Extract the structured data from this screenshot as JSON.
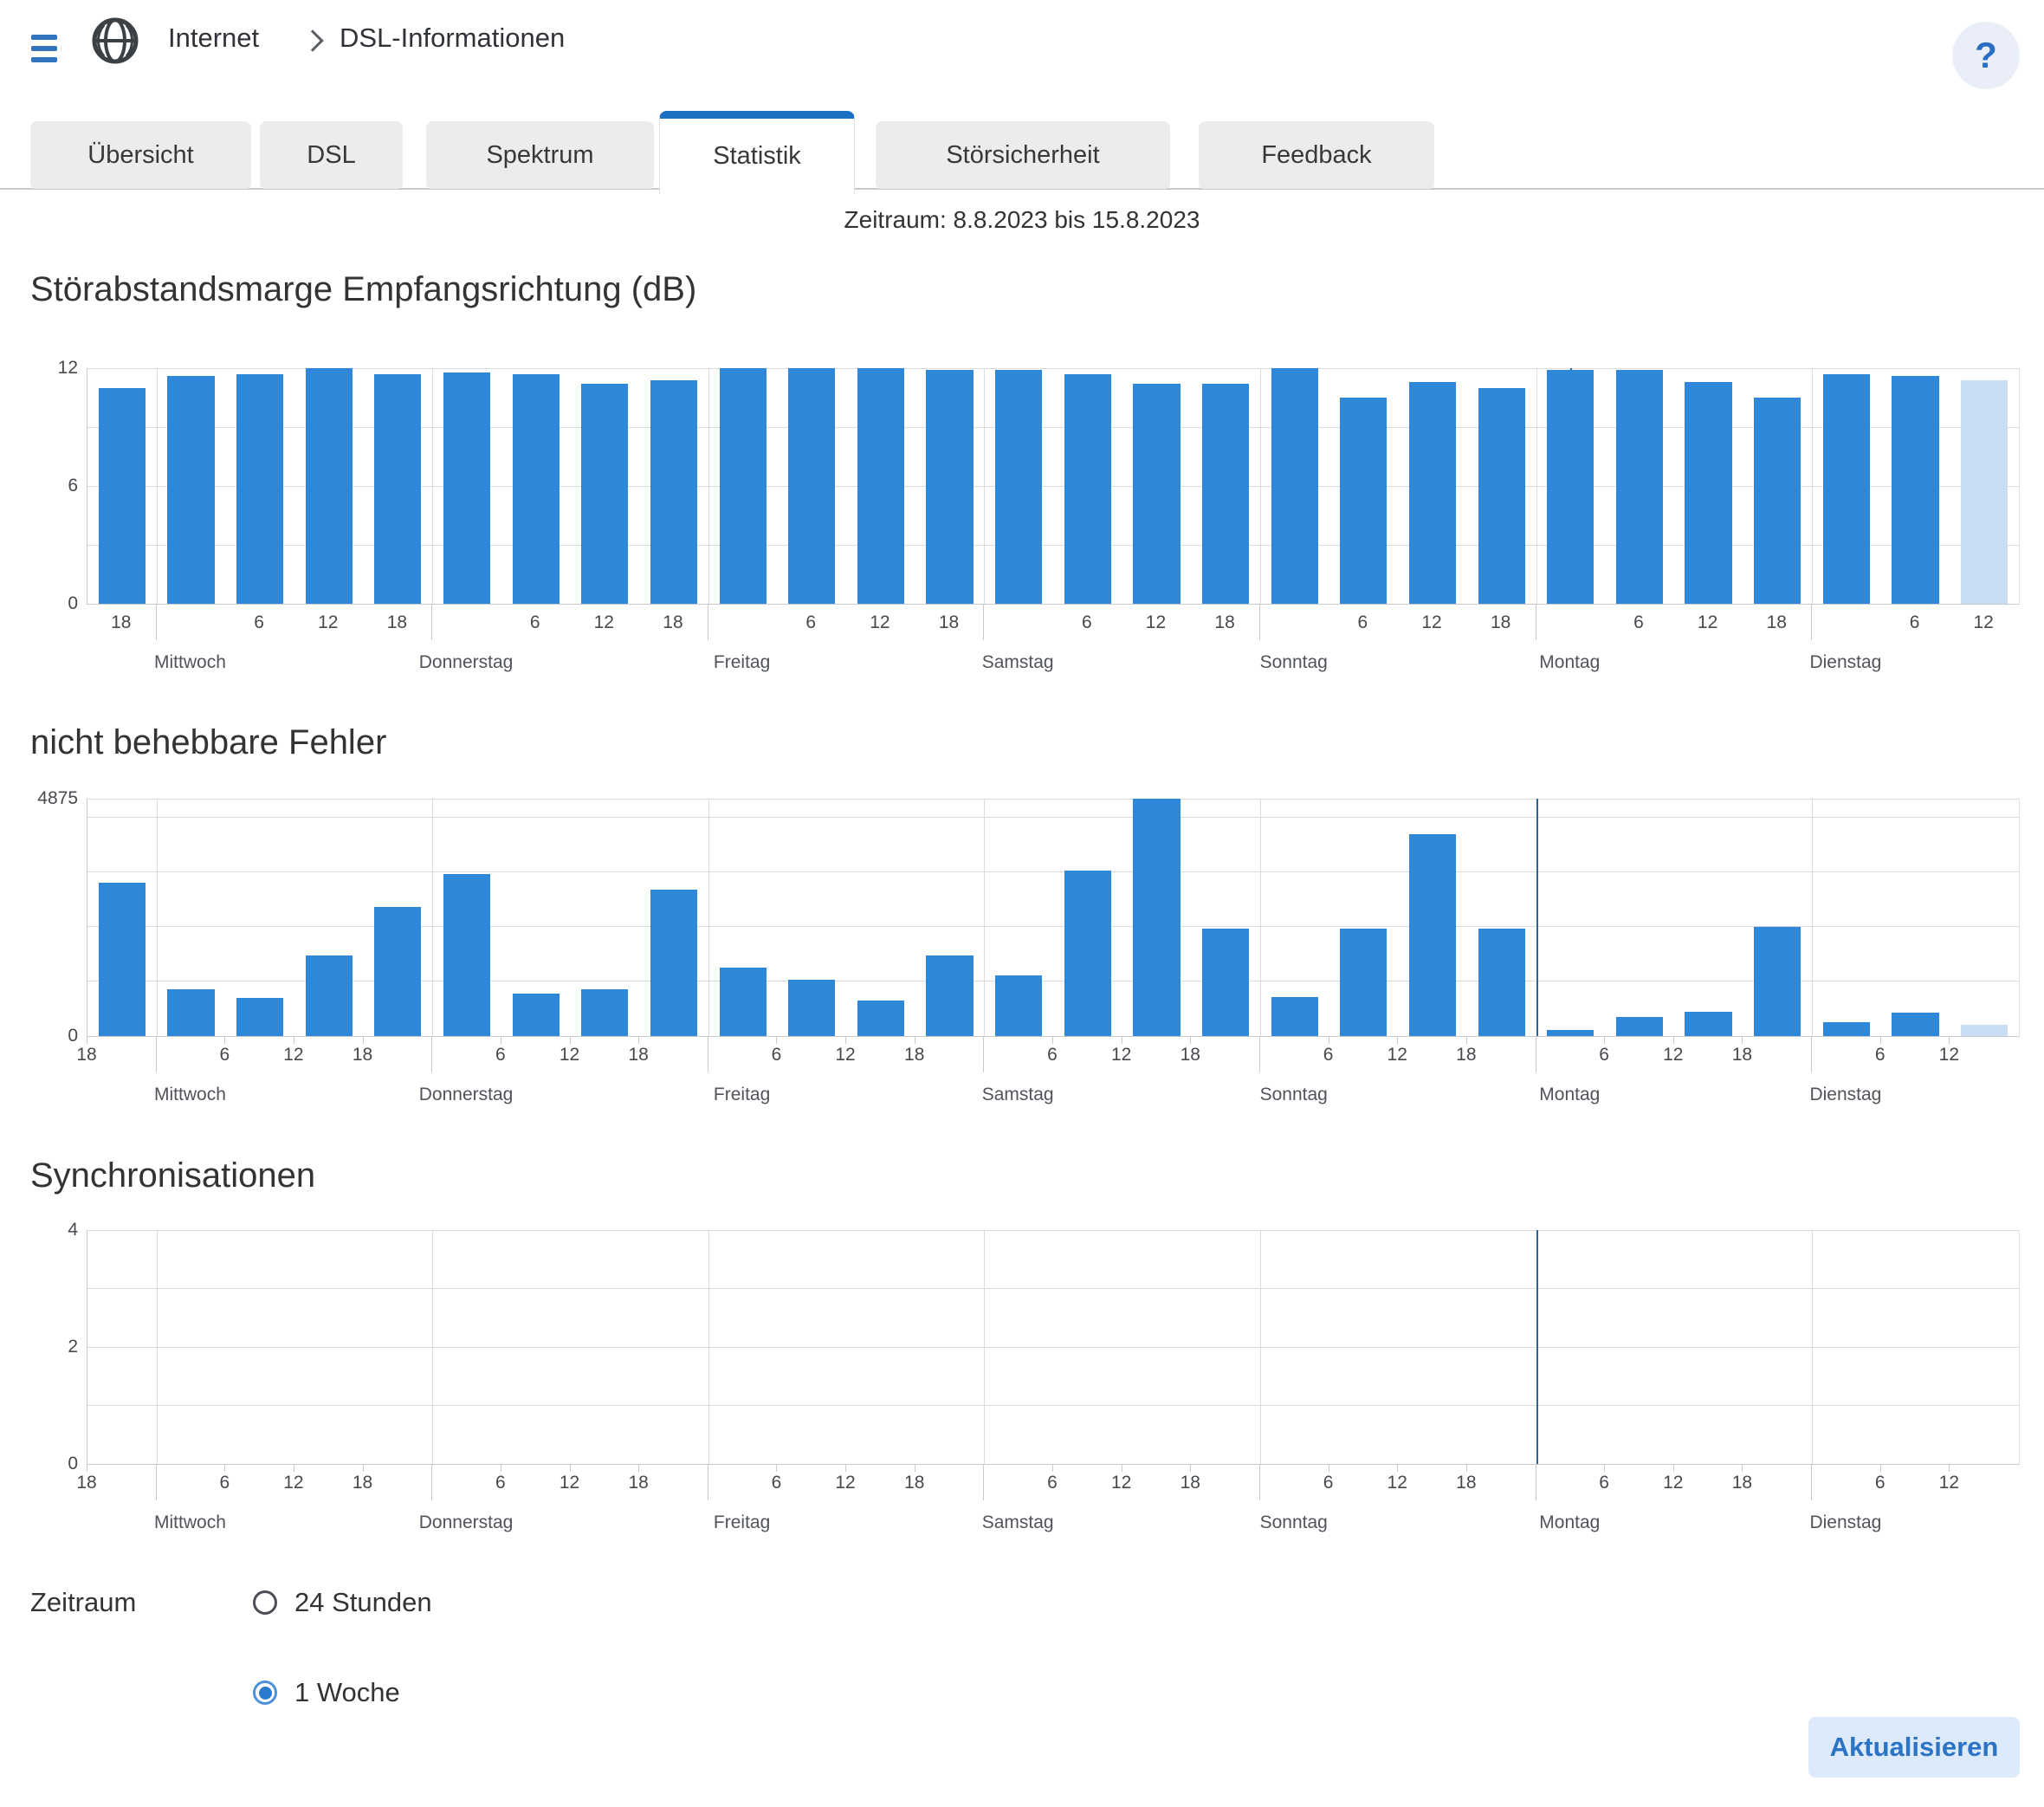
{
  "header": {
    "breadcrumb": [
      "Internet",
      "DSL-Informationen"
    ],
    "help_label": "?"
  },
  "tabs": [
    {
      "label": "Übersicht",
      "active": false
    },
    {
      "label": "DSL",
      "active": false
    },
    {
      "label": "Spektrum",
      "active": false
    },
    {
      "label": "Statistik",
      "active": true
    },
    {
      "label": "Störsicherheit",
      "active": false
    },
    {
      "label": "Feedback",
      "active": false
    }
  ],
  "period_note": "Zeitraum: 8.8.2023 bis 15.8.2023",
  "chart_data": [
    {
      "type": "bar",
      "title": "Störabstandsmarge Empfangsrichtung (dB)",
      "ylim": [
        0,
        12
      ],
      "ytick_labels": [
        {
          "value": 0,
          "label": "0"
        },
        {
          "value": 6,
          "label": "6"
        },
        {
          "value": 12,
          "label": "12"
        }
      ],
      "gridline_values": [
        3,
        6,
        9,
        12
      ],
      "hour_labels": [
        "18",
        "",
        "6",
        "12",
        "18",
        "",
        "6",
        "12",
        "18",
        "",
        "6",
        "12",
        "18",
        "",
        "6",
        "12",
        "18",
        "",
        "6",
        "12",
        "18",
        "",
        "6",
        "12",
        "18",
        "",
        "6",
        "12"
      ],
      "day_labels": [
        "Mittwoch",
        "Donnerstag",
        "Freitag",
        "Samstag",
        "Sonntag",
        "Montag",
        "Dienstag"
      ],
      "values": [
        11,
        11.6,
        11.7,
        12,
        11.7,
        11.8,
        11.7,
        11.2,
        11.4,
        12,
        12,
        12,
        11.9,
        11.9,
        11.7,
        11.2,
        11.2,
        12,
        10.5,
        11.3,
        11,
        11.9,
        11.9,
        11.3,
        10.5,
        11.7,
        11.6,
        11.4
      ],
      "partial_last_bar": true,
      "marker_at_day": "Montag",
      "label_mode": "center"
    },
    {
      "type": "bar",
      "title": "nicht behebbare Fehler",
      "ylim": [
        0,
        4875
      ],
      "ytick_labels": [
        {
          "value": 0,
          "label": "0"
        },
        {
          "value": 4875,
          "label": "4875"
        }
      ],
      "gridline_values": [
        1125,
        2250,
        3375,
        4500,
        4875
      ],
      "hour_labels": [
        "18",
        "",
        "6",
        "12",
        "18",
        "",
        "6",
        "12",
        "18",
        "",
        "6",
        "12",
        "18",
        "",
        "6",
        "12",
        "18",
        "",
        "6",
        "12",
        "18",
        "",
        "6",
        "12",
        "18",
        "",
        "6",
        "12"
      ],
      "day_labels": [
        "Mittwoch",
        "Donnerstag",
        "Freitag",
        "Samstag",
        "Sonntag",
        "Montag",
        "Dienstag"
      ],
      "values": [
        3150,
        960,
        790,
        1660,
        2660,
        3320,
        880,
        960,
        3000,
        1400,
        1150,
        730,
        1650,
        1250,
        3400,
        4875,
        2200,
        800,
        2200,
        4150,
        2200,
        120,
        400,
        490,
        2250,
        290,
        480,
        230
      ],
      "partial_last_bar": true,
      "marker_at_day": "Montag",
      "label_mode": "edge"
    },
    {
      "type": "bar",
      "title": "Synchronisationen",
      "ylim": [
        0,
        4
      ],
      "ytick_labels": [
        {
          "value": 0,
          "label": "0"
        },
        {
          "value": 2,
          "label": "2"
        },
        {
          "value": 4,
          "label": "4"
        }
      ],
      "gridline_values": [
        1,
        2,
        3,
        4
      ],
      "hour_labels": [
        "18",
        "",
        "6",
        "12",
        "18",
        "",
        "6",
        "12",
        "18",
        "",
        "6",
        "12",
        "18",
        "",
        "6",
        "12",
        "18",
        "",
        "6",
        "12",
        "18",
        "",
        "6",
        "12",
        "18",
        "",
        "6",
        "12"
      ],
      "day_labels": [
        "Mittwoch",
        "Donnerstag",
        "Freitag",
        "Samstag",
        "Sonntag",
        "Montag",
        "Dienstag"
      ],
      "values": [
        0,
        0,
        0,
        0,
        0,
        0,
        0,
        0,
        0,
        0,
        0,
        0,
        0,
        0,
        0,
        0,
        0,
        0,
        0,
        0,
        0,
        0,
        0,
        0,
        0,
        0,
        0,
        0
      ],
      "partial_last_bar": false,
      "marker_at_day": "Montag",
      "label_mode": "edge"
    }
  ],
  "controls": {
    "label": "Zeitraum",
    "options": [
      {
        "label": "24 Stunden",
        "selected": false
      },
      {
        "label": "1 Woche",
        "selected": true
      }
    ]
  },
  "actions": {
    "refresh_label": "Aktualisieren"
  },
  "colors": {
    "bar": "#2e87d8",
    "bar_partial": "#c9def5",
    "marker": "#2b6298",
    "accent": "#1c70c4",
    "button_bg": "#ddeafb",
    "button_text": "#2b73c5"
  }
}
